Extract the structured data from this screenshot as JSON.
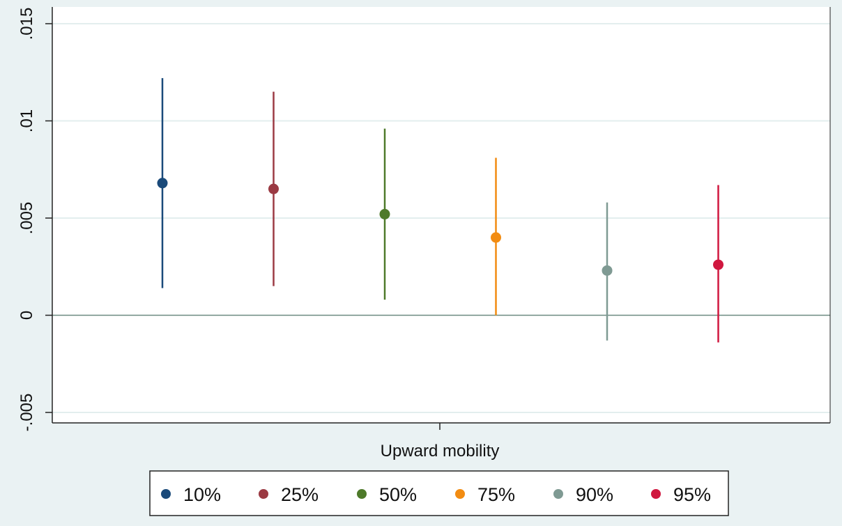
{
  "chart_data": {
    "type": "scatter",
    "subtype": "coefficient plot with confidence intervals",
    "title": "",
    "xlabel": "Upward mobility",
    "ylabel": "",
    "ylim": [
      -0.005,
      0.015
    ],
    "yticks": [
      -0.005,
      0,
      0.005,
      0.01,
      0.015
    ],
    "ytick_labels": [
      "-.005",
      "0",
      ".005",
      ".01",
      ".015"
    ],
    "grid": true,
    "reference_line": 0,
    "legend_placement": "bottom",
    "series": [
      {
        "name": "10%",
        "estimate": 0.0068,
        "ci_low": 0.0014,
        "ci_high": 0.0122,
        "color": "#1a4a7a"
      },
      {
        "name": "25%",
        "estimate": 0.0065,
        "ci_low": 0.0015,
        "ci_high": 0.0115,
        "color": "#9b3a43"
      },
      {
        "name": "50%",
        "estimate": 0.0052,
        "ci_low": 0.0008,
        "ci_high": 0.0096,
        "color": "#4e7a2a"
      },
      {
        "name": "75%",
        "estimate": 0.004,
        "ci_low": 0.0,
        "ci_high": 0.0081,
        "color": "#f28c12"
      },
      {
        "name": "90%",
        "estimate": 0.0023,
        "ci_low": -0.0013,
        "ci_high": 0.0058,
        "color": "#7f9a93"
      },
      {
        "name": "95%",
        "estimate": 0.0026,
        "ci_low": -0.0014,
        "ci_high": 0.0067,
        "color": "#d0173f"
      }
    ]
  }
}
